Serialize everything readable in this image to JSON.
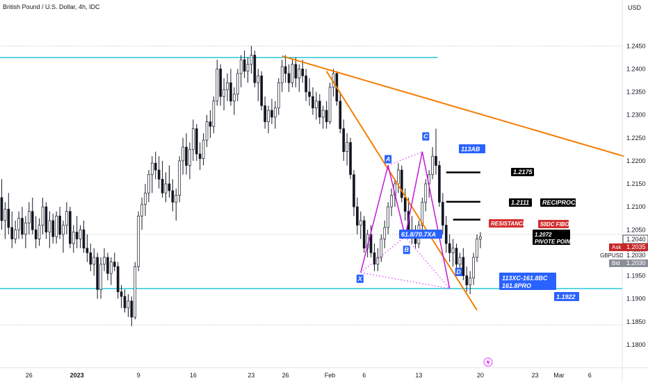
{
  "header": {
    "title": "British Pound / U.S. Dollar, 4h, IDC",
    "currency": "USD"
  },
  "colors": {
    "bullish": "#ffffff",
    "bearish": "#131722",
    "support_lines": "#26c6da",
    "trend_lines": "#f57c00",
    "harmonic": "#c218d9",
    "harmonic_dotted": "#e040fb",
    "label_blue": "#2962ff",
    "label_red": "#d32f2f",
    "label_black": "#000000",
    "ask_red": "#c62828",
    "bid_gray": "#8a8e99"
  },
  "chart_data": {
    "type": "candlestick",
    "symbol": "GBPUSD",
    "timeframe": "4h",
    "y_axis": {
      "min": 1.175,
      "max": 1.255,
      "tick_labels": [
        "1.2450",
        "1.2400",
        "1.2350",
        "1.2300",
        "1.2250",
        "1.2200",
        "1.2150",
        "1.2100",
        "1.2050",
        "1.2000",
        "1.1950",
        "1.1900",
        "1.1850",
        "1.1800"
      ],
      "tick_values": [
        1.245,
        1.24,
        1.235,
        1.23,
        1.225,
        1.22,
        1.215,
        1.21,
        1.205,
        1.2,
        1.195,
        1.19,
        1.185,
        1.18
      ]
    },
    "x_axis": {
      "tick_labels": [
        "26",
        "2023",
        "9",
        "16",
        "23",
        "26",
        "Feb",
        "6",
        "13",
        "20",
        "23",
        "Mar",
        "6"
      ],
      "tick_bold": [
        false,
        true,
        false,
        false,
        false,
        false,
        false,
        false,
        false,
        false,
        false,
        false,
        false
      ],
      "tick_index": [
        8,
        22,
        40,
        56,
        73,
        83,
        96,
        106,
        122,
        140,
        156,
        163,
        172
      ]
    },
    "total_slots": 182,
    "candles": [
      [
        1.212,
        1.216,
        1.205,
        1.207
      ],
      [
        1.207,
        1.211,
        1.203,
        1.2095
      ],
      [
        1.2095,
        1.213,
        1.204,
        1.2055
      ],
      [
        1.2055,
        1.209,
        1.201,
        1.203
      ],
      [
        1.203,
        1.207,
        1.202,
        1.205
      ],
      [
        1.205,
        1.209,
        1.203,
        1.2075
      ],
      [
        1.2075,
        1.21,
        1.203,
        1.204
      ],
      [
        1.204,
        1.208,
        1.201,
        1.2065
      ],
      [
        1.2065,
        1.211,
        1.204,
        1.209
      ],
      [
        1.209,
        1.212,
        1.204,
        1.205
      ],
      [
        1.205,
        1.208,
        1.201,
        1.203
      ],
      [
        1.203,
        1.2075,
        1.2015,
        1.206
      ],
      [
        1.206,
        1.212,
        1.204,
        1.21
      ],
      [
        1.21,
        1.211,
        1.203,
        1.2045
      ],
      [
        1.2045,
        1.209,
        1.201,
        1.207
      ],
      [
        1.207,
        1.2085,
        1.202,
        1.2035
      ],
      [
        1.2035,
        1.209,
        1.202,
        1.208
      ],
      [
        1.208,
        1.21,
        1.203,
        1.204
      ],
      [
        1.204,
        1.207,
        1.2,
        1.206
      ],
      [
        1.206,
        1.211,
        1.204,
        1.209
      ],
      [
        1.209,
        1.21,
        1.201,
        1.202
      ],
      [
        1.202,
        1.206,
        1.2,
        1.2045
      ],
      [
        1.2045,
        1.208,
        1.201,
        1.203
      ],
      [
        1.203,
        1.206,
        1.201,
        1.205
      ],
      [
        1.205,
        1.207,
        1.2,
        1.201
      ],
      [
        1.201,
        1.204,
        1.198,
        1.2
      ],
      [
        1.2,
        1.202,
        1.196,
        1.1975
      ],
      [
        1.1975,
        1.201,
        1.195,
        1.199
      ],
      [
        1.199,
        1.2,
        1.19,
        1.192
      ],
      [
        1.192,
        1.199,
        1.19,
        1.1975
      ],
      [
        1.1975,
        1.201,
        1.196,
        1.199
      ],
      [
        1.199,
        1.2,
        1.194,
        1.1955
      ],
      [
        1.1955,
        1.199,
        1.193,
        1.198
      ],
      [
        1.198,
        1.2,
        1.196,
        1.197
      ],
      [
        1.197,
        1.198,
        1.19,
        1.1915
      ],
      [
        1.1915,
        1.193,
        1.188,
        1.1905
      ],
      [
        1.1905,
        1.192,
        1.187,
        1.188
      ],
      [
        1.188,
        1.191,
        1.186,
        1.1895
      ],
      [
        1.1895,
        1.1905,
        1.184,
        1.186
      ],
      [
        1.186,
        1.198,
        1.1855,
        1.197
      ],
      [
        1.197,
        1.209,
        1.196,
        1.208
      ],
      [
        1.208,
        1.212,
        1.205,
        1.2105
      ],
      [
        1.2105,
        1.215,
        1.208,
        1.213
      ],
      [
        1.213,
        1.218,
        1.211,
        1.217
      ],
      [
        1.217,
        1.221,
        1.213,
        1.2195
      ],
      [
        1.2195,
        1.222,
        1.216,
        1.218
      ],
      [
        1.218,
        1.221,
        1.214,
        1.216
      ],
      [
        1.216,
        1.22,
        1.212,
        1.213
      ],
      [
        1.213,
        1.2175,
        1.211,
        1.215
      ],
      [
        1.215,
        1.219,
        1.212,
        1.2135
      ],
      [
        1.2135,
        1.216,
        1.209,
        1.211
      ],
      [
        1.211,
        1.214,
        1.207,
        1.2125
      ],
      [
        1.2125,
        1.221,
        1.211,
        1.22
      ],
      [
        1.22,
        1.225,
        1.217,
        1.223
      ],
      [
        1.223,
        1.226,
        1.217,
        1.219
      ],
      [
        1.219,
        1.224,
        1.216,
        1.2225
      ],
      [
        1.2225,
        1.229,
        1.22,
        1.227
      ],
      [
        1.227,
        1.228,
        1.22,
        1.2215
      ],
      [
        1.2215,
        1.224,
        1.218,
        1.2205
      ],
      [
        1.2205,
        1.226,
        1.219,
        1.2245
      ],
      [
        1.2245,
        1.23,
        1.223,
        1.2285
      ],
      [
        1.2285,
        1.231,
        1.225,
        1.2275
      ],
      [
        1.2275,
        1.234,
        1.226,
        1.233
      ],
      [
        1.233,
        1.242,
        1.232,
        1.24
      ],
      [
        1.24,
        1.241,
        1.232,
        1.234
      ],
      [
        1.234,
        1.238,
        1.231,
        1.2355
      ],
      [
        1.2355,
        1.239,
        1.233,
        1.237
      ],
      [
        1.237,
        1.24,
        1.232,
        1.233
      ],
      [
        1.233,
        1.236,
        1.23,
        1.2345
      ],
      [
        1.2345,
        1.24,
        1.233,
        1.239
      ],
      [
        1.239,
        1.243,
        1.236,
        1.242
      ],
      [
        1.242,
        1.244,
        1.238,
        1.2395
      ],
      [
        1.2395,
        1.2425,
        1.237,
        1.241
      ],
      [
        1.241,
        1.245,
        1.239,
        1.243
      ],
      [
        1.243,
        1.244,
        1.236,
        1.237
      ],
      [
        1.237,
        1.24,
        1.233,
        1.2385
      ],
      [
        1.2385,
        1.2395,
        1.231,
        1.232
      ],
      [
        1.232,
        1.234,
        1.227,
        1.2285
      ],
      [
        1.2285,
        1.232,
        1.226,
        1.231
      ],
      [
        1.231,
        1.2335,
        1.228,
        1.2295
      ],
      [
        1.2295,
        1.233,
        1.227,
        1.2315
      ],
      [
        1.2315,
        1.238,
        1.23,
        1.237
      ],
      [
        1.237,
        1.242,
        1.235,
        1.2405
      ],
      [
        1.2405,
        1.243,
        1.237,
        1.239
      ],
      [
        1.239,
        1.241,
        1.235,
        1.237
      ],
      [
        1.237,
        1.242,
        1.236,
        1.241
      ],
      [
        1.241,
        1.2425,
        1.236,
        1.238
      ],
      [
        1.238,
        1.241,
        1.235,
        1.24
      ],
      [
        1.24,
        1.242,
        1.237,
        1.2385
      ],
      [
        1.2385,
        1.24,
        1.233,
        1.235
      ],
      [
        1.235,
        1.238,
        1.232,
        1.234
      ],
      [
        1.234,
        1.236,
        1.23,
        1.2315
      ],
      [
        1.2315,
        1.235,
        1.229,
        1.233
      ],
      [
        1.233,
        1.2345,
        1.228,
        1.2295
      ],
      [
        1.2295,
        1.232,
        1.227,
        1.231
      ],
      [
        1.231,
        1.233,
        1.227,
        1.2285
      ],
      [
        1.2285,
        1.237,
        1.228,
        1.236
      ],
      [
        1.236,
        1.24,
        1.234,
        1.239
      ],
      [
        1.239,
        1.2395,
        1.232,
        1.233
      ],
      [
        1.233,
        1.235,
        1.226,
        1.227
      ],
      [
        1.227,
        1.229,
        1.22,
        1.222
      ],
      [
        1.222,
        1.226,
        1.219,
        1.224
      ],
      [
        1.224,
        1.225,
        1.216,
        1.217
      ],
      [
        1.217,
        1.218,
        1.208,
        1.21
      ],
      [
        1.21,
        1.212,
        1.204,
        1.206
      ],
      [
        1.206,
        1.209,
        1.203,
        1.207
      ],
      [
        1.207,
        1.208,
        1.2,
        1.201
      ],
      [
        1.201,
        1.205,
        1.199,
        1.204
      ],
      [
        1.204,
        1.206,
        1.199,
        1.2
      ],
      [
        1.2,
        1.202,
        1.196,
        1.1975
      ],
      [
        1.1975,
        1.201,
        1.196,
        1.199
      ],
      [
        1.199,
        1.204,
        1.198,
        1.203
      ],
      [
        1.203,
        1.207,
        1.201,
        1.2055
      ],
      [
        1.2055,
        1.211,
        1.204,
        1.21
      ],
      [
        1.21,
        1.214,
        1.208,
        1.2125
      ],
      [
        1.2125,
        1.216,
        1.21,
        1.215
      ],
      [
        1.215,
        1.2195,
        1.213,
        1.218
      ],
      [
        1.218,
        1.219,
        1.211,
        1.212
      ],
      [
        1.212,
        1.214,
        1.207,
        1.209
      ],
      [
        1.209,
        1.212,
        1.204,
        1.205
      ],
      [
        1.205,
        1.208,
        1.202,
        1.2035
      ],
      [
        1.2035,
        1.206,
        1.201,
        1.202
      ],
      [
        1.202,
        1.207,
        1.201,
        1.206
      ],
      [
        1.206,
        1.212,
        1.205,
        1.211
      ],
      [
        1.211,
        1.216,
        1.209,
        1.215
      ],
      [
        1.215,
        1.218,
        1.212,
        1.217
      ],
      [
        1.217,
        1.223,
        1.216,
        1.221
      ],
      [
        1.221,
        1.227,
        1.217,
        1.219
      ],
      [
        1.219,
        1.22,
        1.21,
        1.211
      ],
      [
        1.211,
        1.213,
        1.204,
        1.206
      ],
      [
        1.206,
        1.208,
        1.2,
        1.202
      ],
      [
        1.202,
        1.204,
        1.198,
        1.2
      ],
      [
        1.2,
        1.203,
        1.197,
        1.201
      ],
      [
        1.201,
        1.202,
        1.196,
        1.1975
      ],
      [
        1.1975,
        1.2,
        1.195,
        1.199
      ],
      [
        1.199,
        1.201,
        1.194,
        1.195
      ],
      [
        1.195,
        1.197,
        1.1915,
        1.193
      ],
      [
        1.193,
        1.196,
        1.191,
        1.1945
      ],
      [
        1.1945,
        1.2,
        1.193,
        1.199
      ],
      [
        1.199,
        1.204,
        1.198,
        1.203
      ],
      [
        1.203,
        1.2045,
        1.201,
        1.2035
      ]
    ],
    "horizontal_lines": [
      {
        "price": 1.2425,
        "x_start_index": 0,
        "x_end_index": 128
      },
      {
        "price": 1.1922,
        "x_start_index": 0,
        "x_end_index": 182
      }
    ],
    "dotted_lines": [
      {
        "price": 1.245
      },
      {
        "price": 1.204
      },
      {
        "price": 1.1843
      }
    ],
    "trend_lines": [
      {
        "from": [
          82,
          1.2428
        ],
        "to": [
          182,
          1.221
        ]
      },
      {
        "from": [
          95,
          1.2395
        ],
        "to": [
          139,
          1.1875
        ]
      }
    ],
    "harmonic_points": [
      {
        "label": "X",
        "index": 105,
        "price": 1.1957
      },
      {
        "label": "A",
        "index": 113,
        "price": 1.219
      },
      {
        "label": "B",
        "index": 118,
        "price": 1.2035
      },
      {
        "label": "C",
        "index": 123,
        "price": 1.222
      },
      {
        "label": "D",
        "index": 131,
        "price": 1.1922
      }
    ],
    "level_lines": [
      {
        "price": 1.2175,
        "index_from": 130,
        "index_to": 140
      },
      {
        "price": 1.2111,
        "index_from": 130,
        "index_to": 140
      },
      {
        "price": 1.2072,
        "index_from": 132,
        "index_to": 140
      }
    ]
  },
  "annotations": {
    "point_x": "X",
    "point_a": "A",
    "point_b": "B",
    "point_c": "C",
    "point_d": "D",
    "ratio_ab": "113AB",
    "ratio_b": "61.8/70.7XA",
    "ratio_d_line1": "113XC-161.8BC",
    "ratio_d_line2": "161.8PRO",
    "level_2175": "1.2175",
    "level_2111": "1.2111",
    "reciprocal": "RECIPROCAL",
    "resistance": "RESISTANCE",
    "fibo_50dc": "50DC FIBO",
    "pivot_price": "1.2072",
    "pivot_label": "PIVOTE POINT",
    "level_1922": "1.1922"
  },
  "price_panel": {
    "last_price": "1.2040",
    "ask_label": "Ask",
    "ask_price": "1.2035",
    "symbol": "GBPUSD",
    "symbol_price": "1.2030",
    "bid_label": "Bid",
    "bid_price": "1.2030"
  }
}
